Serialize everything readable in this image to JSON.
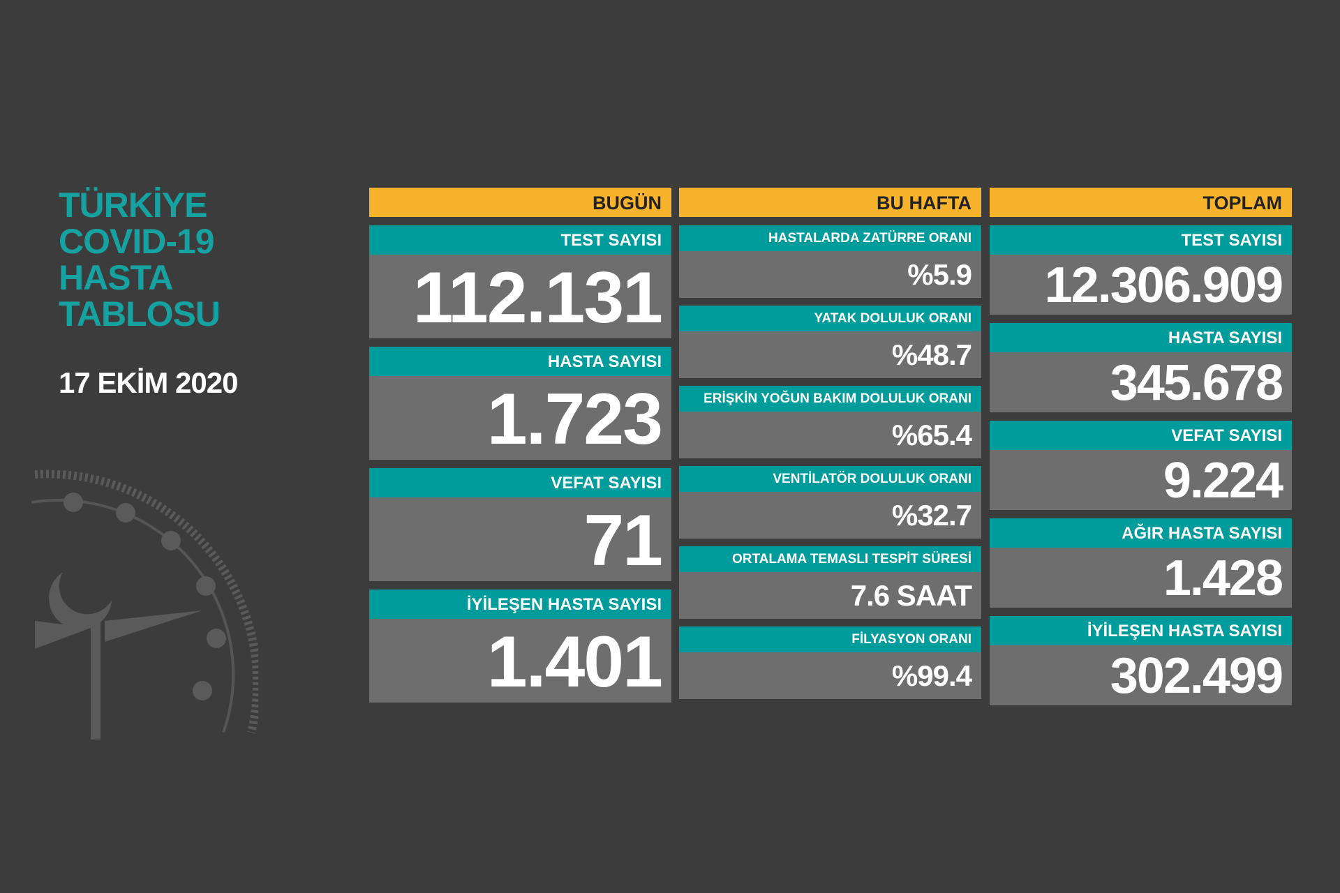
{
  "title": [
    "TÜRKİYE",
    "COVID-19",
    "HASTA",
    "TABLOSU"
  ],
  "date": "17 EKİM 2020",
  "columns": [
    {
      "header": "BUGÜN",
      "items": [
        {
          "label": "TEST SAYISI",
          "value": "112.131"
        },
        {
          "label": "HASTA SAYISI",
          "value": "1.723"
        },
        {
          "label": "VEFAT SAYISI",
          "value": "71"
        },
        {
          "label": "İYİLEŞEN HASTA SAYISI",
          "value": "1.401"
        }
      ]
    },
    {
      "header": "BU HAFTA",
      "items": [
        {
          "label": "HASTALARDA ZATÜRRE ORANI",
          "value": "%5.9"
        },
        {
          "label": "YATAK DOLULUK ORANI",
          "value": "%48.7"
        },
        {
          "label": "ERİŞKİN YOĞUN BAKIM DOLULUK ORANI",
          "value": "%65.4"
        },
        {
          "label": "VENTİLATÖR DOLULUK ORANI",
          "value": "%32.7"
        },
        {
          "label": "ORTALAMA TEMASLI TESPİT SÜRESİ",
          "value": "7.6 SAAT"
        },
        {
          "label": "FİLYASYON ORANI",
          "value": "%99.4"
        }
      ]
    },
    {
      "header": "TOPLAM",
      "items": [
        {
          "label": "TEST SAYISI",
          "value": "12.306.909"
        },
        {
          "label": "HASTA SAYISI",
          "value": "345.678"
        },
        {
          "label": "VEFAT SAYISI",
          "value": "9.224"
        },
        {
          "label": "AĞIR HASTA SAYISI",
          "value": "1.428"
        },
        {
          "label": "İYİLEŞEN HASTA SAYISI",
          "value": "302.499"
        }
      ]
    }
  ]
}
